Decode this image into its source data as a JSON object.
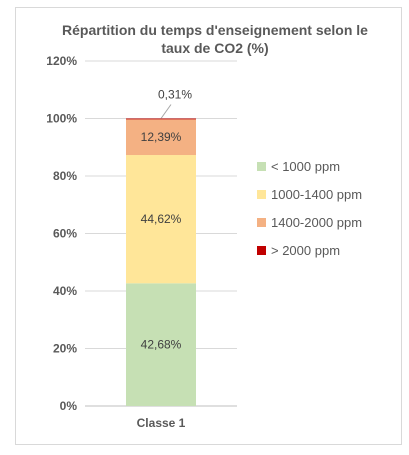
{
  "chart_data": {
    "type": "bar",
    "stacked": true,
    "title_lines": [
      "Répartition du temps d'enseignement selon le",
      "taux de CO2  (%)"
    ],
    "categories": [
      "Classe 1"
    ],
    "yticks": [
      "0%",
      "20%",
      "40%",
      "60%",
      "80%",
      "100%",
      "120%"
    ],
    "ylim": [
      0,
      120
    ],
    "grid": true,
    "legend_position": "right",
    "series": [
      {
        "name": "< 1000 ppm",
        "values": [
          42.68
        ],
        "label": "42,68%",
        "color": "#c6e0b4"
      },
      {
        "name": "1000-1400 ppm",
        "values": [
          44.62
        ],
        "label": "44,62%",
        "color": "#ffe699"
      },
      {
        "name": "1400-2000 ppm",
        "values": [
          12.39
        ],
        "label": "12,39%",
        "color": "#f4b183"
      },
      {
        "name": "> 2000 ppm",
        "values": [
          0.31
        ],
        "label": "0,31%",
        "color": "#c00000"
      }
    ]
  }
}
